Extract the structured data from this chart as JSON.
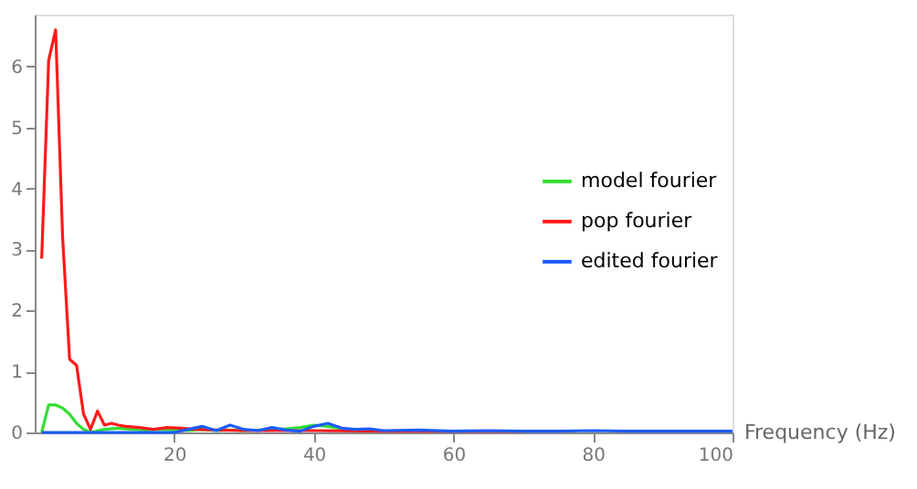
{
  "chart_data": {
    "type": "line",
    "xlabel": "Frequency (Hz)",
    "xlim": [
      0,
      100
    ],
    "ylim": [
      0,
      6.85
    ],
    "xticks": [
      20,
      40,
      60,
      80,
      100
    ],
    "yticks": [
      0,
      1,
      2,
      3,
      4,
      5,
      6
    ],
    "grid": false,
    "legend": "right",
    "marker": "none",
    "line_style": "solid",
    "series": [
      {
        "name": "model fourier",
        "color": "#33dd33",
        "x": [
          1,
          2,
          3,
          4,
          5,
          6,
          7,
          8,
          10,
          12,
          14,
          16,
          18,
          20,
          22,
          24,
          26,
          28,
          30,
          32,
          34,
          36,
          38,
          40,
          42,
          44,
          46
        ],
        "values": [
          0,
          0.45,
          0.45,
          0.4,
          0.3,
          0.15,
          0.05,
          0,
          0.05,
          0.07,
          0.05,
          0.04,
          0.05,
          0.04,
          0.03,
          0.05,
          0.03,
          0.04,
          0.03,
          0.04,
          0.05,
          0.06,
          0.08,
          0.12,
          0.1,
          0.06,
          0.04
        ]
      },
      {
        "name": "pop fourier",
        "color": "#ff1a1a",
        "x": [
          1,
          2,
          3,
          4,
          5,
          6,
          7,
          8,
          9,
          10,
          11,
          12,
          13,
          15,
          17,
          19,
          21,
          23,
          26,
          30,
          35,
          40,
          50,
          60,
          70
        ],
        "values": [
          2.85,
          6.1,
          6.6,
          3.2,
          1.2,
          1.1,
          0.3,
          0.05,
          0.35,
          0.12,
          0.15,
          0.12,
          0.1,
          0.08,
          0.05,
          0.08,
          0.07,
          0.05,
          0.04,
          0.03,
          0.03,
          0.03,
          0.02,
          0.02,
          0.02
        ]
      },
      {
        "name": "edited fourier",
        "color": "#1a5cff",
        "x": [
          1,
          20,
          22,
          24,
          26,
          28,
          30,
          32,
          34,
          36,
          38,
          40,
          42,
          44,
          46,
          48,
          50,
          55,
          60,
          65,
          70,
          75,
          80,
          85,
          90,
          95,
          100
        ],
        "values": [
          0,
          0,
          0.05,
          0.1,
          0.03,
          0.12,
          0.05,
          0.03,
          0.08,
          0.04,
          0.02,
          0.1,
          0.15,
          0.07,
          0.05,
          0.06,
          0.03,
          0.04,
          0.02,
          0.03,
          0.02,
          0.02,
          0.03,
          0.02,
          0.02,
          0.02,
          0.02
        ]
      }
    ]
  }
}
